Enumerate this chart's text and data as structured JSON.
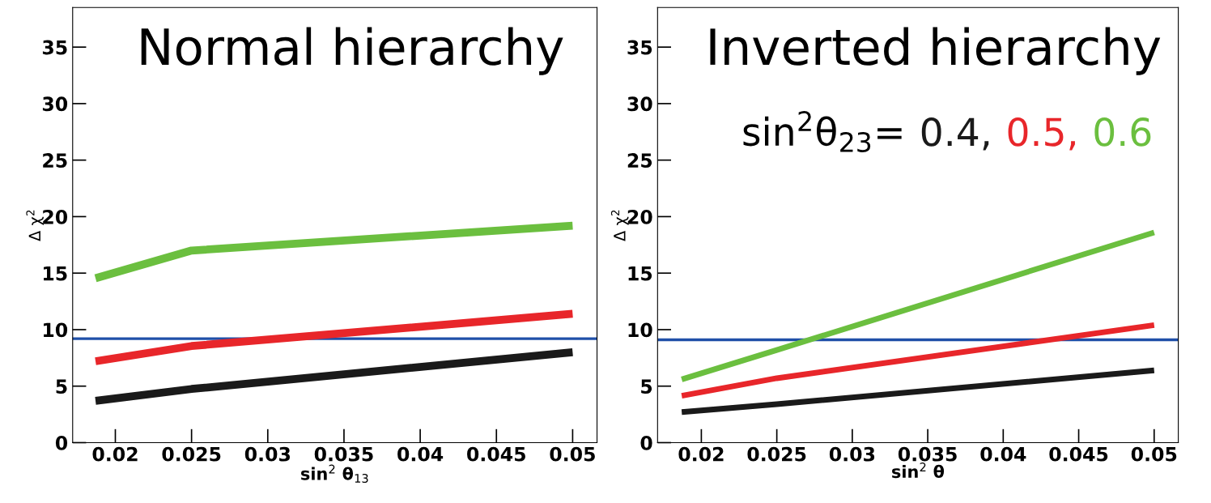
{
  "chart_data": [
    {
      "type": "line",
      "title": "Normal hierarchy",
      "xlabel": "sin$^{2}$ θ$_{13}$",
      "ylabel": "Δ χ$^{2}$",
      "xlim": [
        0.0172,
        0.0516
      ],
      "ylim": [
        0,
        38.5
      ],
      "xticks": [
        0.02,
        0.025,
        0.03,
        0.035,
        0.04,
        0.045,
        0.05
      ],
      "yticks": [
        0,
        5,
        10,
        15,
        20,
        25,
        30,
        35
      ],
      "grid": false,
      "legend": false,
      "series": [
        {
          "color": "#1a1a1a",
          "x": [
            0.0187,
            0.025,
            0.05
          ],
          "values": [
            3.7,
            4.75,
            8.0
          ]
        },
        {
          "color": "#e8262a",
          "x": [
            0.0187,
            0.025,
            0.05
          ],
          "values": [
            7.2,
            8.55,
            11.4
          ]
        },
        {
          "color": "#6bbf3f",
          "x": [
            0.0187,
            0.025,
            0.05
          ],
          "values": [
            14.55,
            17.0,
            19.2
          ]
        }
      ],
      "ref_lines": [
        {
          "axis": "y",
          "value": 9.2,
          "color": "#1f4fa8"
        }
      ]
    },
    {
      "type": "line",
      "title": "Inverted hierarchy",
      "xlabel": "sin$^{2}$ θ",
      "ylabel": "Δ χ$^{2}$",
      "xlim": [
        0.0171,
        0.0516
      ],
      "ylim": [
        0,
        38.5
      ],
      "xticks": [
        0.02,
        0.025,
        0.03,
        0.035,
        0.04,
        0.045,
        0.05
      ],
      "yticks": [
        0,
        5,
        10,
        15,
        20,
        25,
        30,
        35
      ],
      "grid": false,
      "legend": "top right",
      "legend_title": "sin$^{2}$θ$_{23}$=",
      "series": [
        {
          "name": "0.4,",
          "color": "#1a1a1a",
          "x": [
            0.0187,
            0.025,
            0.05
          ],
          "values": [
            2.7,
            3.4,
            6.4
          ]
        },
        {
          "name": "0.5,",
          "color": "#e8262a",
          "x": [
            0.0187,
            0.025,
            0.05
          ],
          "values": [
            4.15,
            5.7,
            10.4
          ]
        },
        {
          "name": "0.6",
          "color": "#6bbf3f",
          "x": [
            0.0187,
            0.025,
            0.05
          ],
          "values": [
            5.6,
            8.2,
            18.6
          ]
        }
      ],
      "ref_lines": [
        {
          "axis": "y",
          "value": 9.1,
          "color": "#1f4fa8"
        }
      ]
    }
  ]
}
